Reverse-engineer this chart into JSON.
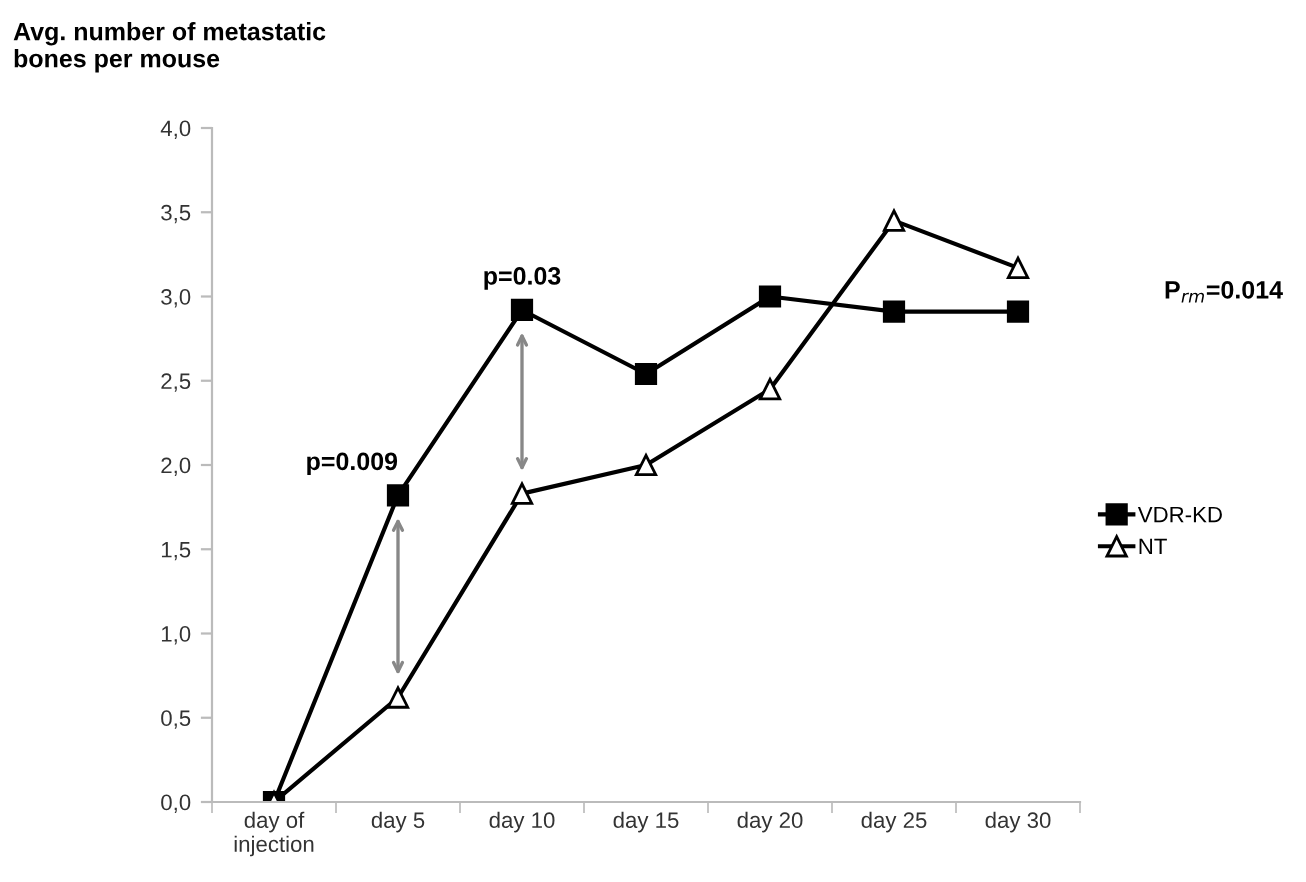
{
  "chart_data": {
    "type": "line",
    "ylabel": "Avg. number of metastatic\nbones per mouse",
    "categories": [
      "day of\ninjection",
      "day 5",
      "day 10",
      "day 15",
      "day 20",
      "day 25",
      "day 30"
    ],
    "series": [
      {
        "name": "VDR-KD",
        "color": "#000000",
        "marker": "square",
        "values": [
          0,
          1.82,
          2.92,
          2.54,
          3.0,
          2.91,
          2.91
        ]
      },
      {
        "name": "NT",
        "color": "#000000",
        "marker": "triangle",
        "values": [
          0,
          0.62,
          1.83,
          2.0,
          2.45,
          3.45,
          3.17
        ]
      }
    ],
    "ylim": [
      0,
      4
    ],
    "yticks": [
      {
        "value": 0,
        "label": "0,0"
      },
      {
        "value": 0.5,
        "label": "0,5"
      },
      {
        "value": 1,
        "label": "1,0"
      },
      {
        "value": 1.5,
        "label": "1,5"
      },
      {
        "value": 2,
        "label": "2,0"
      },
      {
        "value": 2.5,
        "label": "2,5"
      },
      {
        "value": 3,
        "label": "3,0"
      },
      {
        "value": 3.5,
        "label": "3,5"
      },
      {
        "value": 4,
        "label": "4,0"
      }
    ],
    "annotations": [
      "p=0.009",
      "p=0.03",
      "P$_{rm}$=0.014"
    ],
    "grid": false,
    "legend": "right"
  }
}
